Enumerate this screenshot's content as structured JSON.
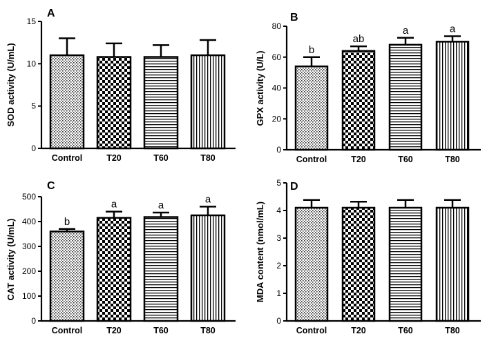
{
  "chart_data": [
    {
      "type": "bar",
      "panel_label": "A",
      "title": "",
      "xlabel": "",
      "ylabel": "SOD activity (U/mL)",
      "categories": [
        "Control",
        "T20",
        "T60",
        "T80"
      ],
      "values": [
        11.0,
        10.8,
        10.8,
        11.0
      ],
      "errors": [
        2.0,
        1.6,
        1.4,
        1.8
      ],
      "significance": [
        "",
        "",
        "",
        ""
      ],
      "ylim": [
        0,
        15
      ],
      "yticks": [
        0,
        5,
        10,
        15
      ],
      "grid": false
    },
    {
      "type": "bar",
      "panel_label": "B",
      "title": "",
      "xlabel": "",
      "ylabel": "GPX activity (U/L)",
      "categories": [
        "Control",
        "T20",
        "T60",
        "T80"
      ],
      "values": [
        54,
        64,
        68,
        70
      ],
      "errors": [
        6,
        3,
        4.5,
        3.5
      ],
      "significance": [
        "b",
        "ab",
        "a",
        "a"
      ],
      "ylim": [
        0,
        80
      ],
      "yticks": [
        0,
        20,
        40,
        60,
        80
      ],
      "grid": false
    },
    {
      "type": "bar",
      "panel_label": "C",
      "title": "",
      "xlabel": "",
      "ylabel": "CAT activity (U/mL)",
      "categories": [
        "Control",
        "T20",
        "T60",
        "T80"
      ],
      "values": [
        360,
        415,
        418,
        425
      ],
      "errors": [
        10,
        25,
        18,
        35
      ],
      "significance": [
        "b",
        "a",
        "a",
        "a"
      ],
      "ylim": [
        0,
        500
      ],
      "yticks": [
        0,
        100,
        200,
        300,
        400,
        500
      ],
      "grid": false
    },
    {
      "type": "bar",
      "panel_label": "D",
      "title": "",
      "xlabel": "",
      "ylabel": "MDA content (nmol/mL)",
      "categories": [
        "Control",
        "T20",
        "T60",
        "T80"
      ],
      "values": [
        4.1,
        4.1,
        4.1,
        4.1
      ],
      "errors": [
        0.28,
        0.22,
        0.28,
        0.28
      ],
      "significance": [
        "",
        "",
        "",
        ""
      ],
      "ylim": [
        0,
        5
      ],
      "yticks": [
        0,
        1,
        2,
        3,
        4,
        5
      ],
      "grid": false
    }
  ]
}
